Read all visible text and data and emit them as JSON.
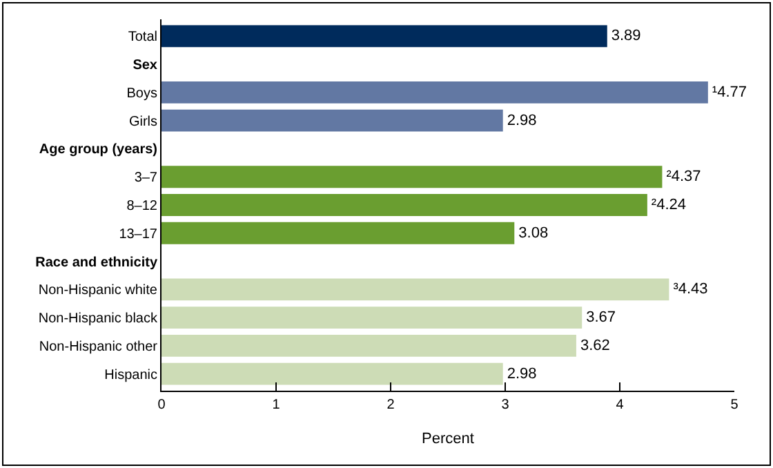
{
  "chart_data": {
    "type": "bar",
    "orientation": "horizontal",
    "xlabel": "Percent",
    "categories": [
      "Total",
      "Sex",
      "Boys",
      "Girls",
      "Age group (years)",
      "3–7",
      "8–12",
      "13–17",
      "Race and ethnicity",
      "Non-Hispanic white",
      "Non-Hispanic black",
      "Non-Hispanic other",
      "Hispanic"
    ],
    "values": [
      3.89,
      null,
      4.77,
      2.98,
      null,
      4.37,
      4.24,
      3.08,
      null,
      4.43,
      3.67,
      3.62,
      2.98
    ],
    "value_labels": [
      "3.89",
      null,
      "¹4.77",
      "2.98",
      null,
      "²4.37",
      "²4.24",
      "3.08",
      null,
      "³4.43",
      "3.67",
      "3.62",
      "2.98"
    ],
    "colors": [
      "#002b5c",
      null,
      "#6278a3",
      "#6278a3",
      null,
      "#6a9e30",
      "#6a9e30",
      "#6a9e30",
      null,
      "#cddcb6",
      "#cddcb6",
      "#cddcb6",
      "#cddcb6"
    ],
    "xlim": [
      0,
      5
    ],
    "xticks": [
      0,
      1,
      2,
      3,
      4,
      5
    ],
    "legend": false
  }
}
